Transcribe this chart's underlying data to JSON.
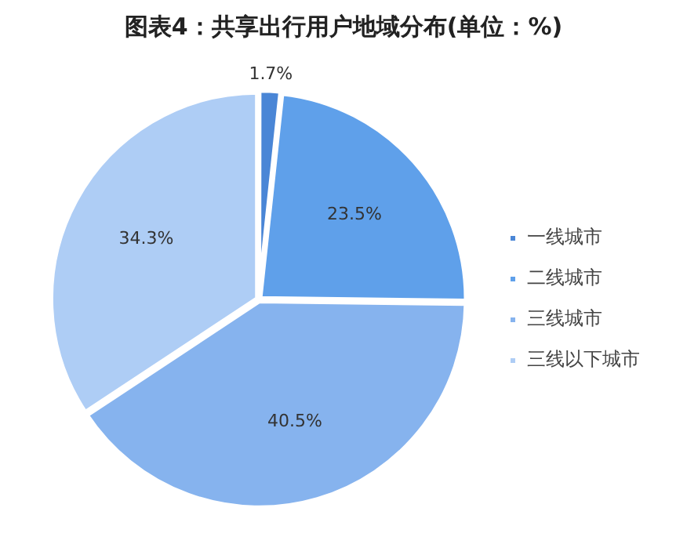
{
  "chart_data": {
    "type": "pie",
    "title": "图表4：共享出行用户地域分布(单位：%)",
    "categories": [
      "一线城市",
      "二线城市",
      "三线城市",
      "三线以下城市"
    ],
    "values": [
      1.7,
      23.5,
      40.5,
      34.3
    ],
    "colors": [
      "#4a86d6",
      "#5fa0ea",
      "#86b3ee",
      "#aecdf5"
    ],
    "value_labels": [
      "1.7%",
      "23.5%",
      "40.5%",
      "34.3%"
    ],
    "legend": "right"
  }
}
